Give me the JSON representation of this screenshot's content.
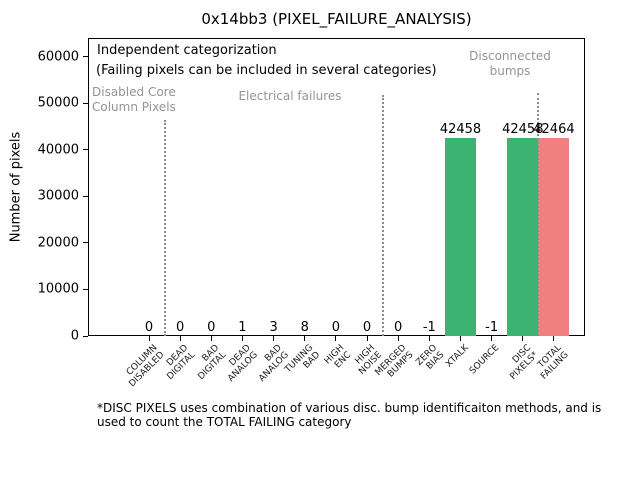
{
  "figure": {
    "title": "0x14bb3 (PIXEL_FAILURE_ANALYSIS)"
  },
  "chart_data": {
    "type": "bar",
    "title": "0x14bb3 (PIXEL_FAILURE_ANALYSIS)",
    "xlabel": "",
    "ylabel": "Number of pixels",
    "categories": [
      "COLUMN\nDISABLED",
      "DEAD\nDIGITAL",
      "BAD\nDIGITAL",
      "DEAD\nANALOG",
      "BAD\nANALOG",
      "TUNING\nBAD",
      "HIGH\nENC",
      "HIGH\nNOISE",
      "MERGED\nBUMPS",
      "ZERO\nBIAS",
      "XTALK",
      "SOURCE",
      "DISC\nPIXELS*",
      "TOTAL\nFAILING"
    ],
    "values": [
      0,
      0,
      0,
      1,
      3,
      8,
      0,
      0,
      0,
      -1,
      42458,
      -1,
      42458,
      42464
    ],
    "bar_value_labels": [
      "0",
      "0",
      "0",
      "1",
      "3",
      "8",
      "0",
      "0",
      "0",
      "-1",
      "42458",
      "-1",
      "42458",
      "42464"
    ],
    "bar_colors": [
      "#3cb371",
      "#3cb371",
      "#3cb371",
      "#3cb371",
      "#3cb371",
      "#3cb371",
      "#3cb371",
      "#3cb371",
      "#3cb371",
      "#3cb371",
      "#3cb371",
      "#3cb371",
      "#3cb371",
      "#f08080"
    ],
    "colors": {
      "bar_green": "#3cb371",
      "bar_red": "#f08080",
      "group_label_gray": "#949494",
      "separator_gray": "#8c8c8c",
      "text_black": "#000000"
    },
    "ylim": [
      0,
      64000
    ],
    "yticks": [
      0,
      10000,
      20000,
      30000,
      40000,
      50000,
      60000
    ],
    "grid": false,
    "legend": null,
    "group_separators_at": [
      0.5,
      7.5,
      12.5
    ],
    "annotations": [
      {
        "name": "annotation-independent-categorization",
        "text": "Independent categorization",
        "color": "#000000",
        "size": 13,
        "align": "left",
        "x": 9,
        "y": 5
      },
      {
        "name": "annotation-multiple-categories-note",
        "text": "(Failing pixels can be included in several categories)",
        "color": "#000000",
        "size": 13,
        "align": "left",
        "x": 8,
        "y": 25
      },
      {
        "name": "group-label-disabled-core-column-pixels",
        "text": "Disabled Core\nColumn Pixels",
        "color": "#949494",
        "size": 12,
        "align": "left",
        "x": 4,
        "y": 47
      },
      {
        "name": "group-label-electrical-failures",
        "text": "Electrical failures",
        "color": "#949494",
        "size": 12,
        "align": "center",
        "x": 202,
        "y": 51
      },
      {
        "name": "group-label-disconnected-bumps",
        "text": "Disconnected\nbumps",
        "color": "#949494",
        "size": 12,
        "align": "center",
        "x": 422,
        "y": 11
      }
    ],
    "footnote": "*DISC PIXELS uses combination of various disc. bump identificaiton methods, and is\nused to count the TOTAL FAILING category"
  }
}
